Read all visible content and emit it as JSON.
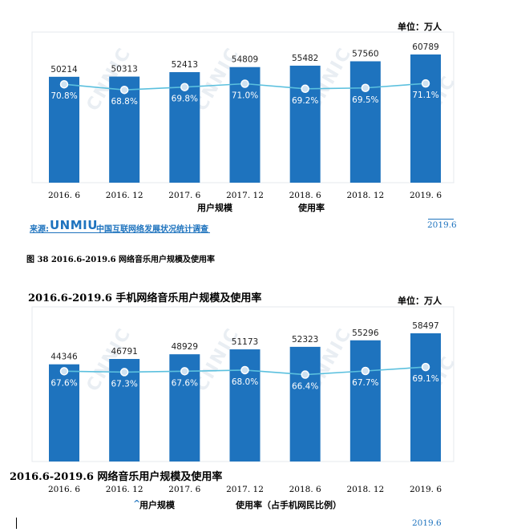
{
  "chart_data": [
    {
      "type": "bar",
      "unit_label": "单位：万人",
      "categories": [
        "2016. 6",
        "2016. 12",
        "2017. 6",
        "2017. 12",
        "2018. 6",
        "2018. 12",
        "2019. 6"
      ],
      "series": [
        {
          "name": "用户规模",
          "values": [
            50214,
            50313,
            52413,
            54809,
            55482,
            57560,
            60789
          ],
          "color": "#1e73be"
        },
        {
          "name": "使用率",
          "values": [
            70.8,
            68.8,
            69.8,
            71.0,
            69.2,
            69.5,
            71.1
          ],
          "labels": [
            "70.8%",
            "68.8%",
            "69.8%",
            "71.0%",
            "69.2%",
            "69.5%",
            "71.1%"
          ],
          "color": "#5bc0de"
        }
      ],
      "ylim": [
        0,
        60789
      ]
    },
    {
      "type": "bar",
      "title": "2016.6-2019.6 手机网络音乐用户规模及使用率",
      "unit_label": "单位：万人",
      "categories": [
        "2016. 6",
        "2016. 12",
        "2017. 6",
        "2017. 12",
        "2018. 6",
        "2018. 12",
        "2019. 6"
      ],
      "series": [
        {
          "name": "用户规模",
          "values": [
            44346,
            46791,
            48929,
            51173,
            52323,
            55296,
            58497
          ],
          "color": "#1e73be"
        },
        {
          "name": "使用率（占手机网民比例）",
          "values": [
            67.6,
            67.3,
            67.6,
            68.0,
            66.4,
            67.7,
            69.1
          ],
          "labels": [
            "67.6%",
            "67.3%",
            "67.6%",
            "68.0%",
            "66.4%",
            "67.7%",
            "69.1%"
          ],
          "color": "#5bc0de"
        }
      ],
      "ylim": [
        0,
        58497
      ]
    }
  ],
  "chart1_meta": {
    "source_prefix": "来源:",
    "source_brand": "UNMIU",
    "source_text": "中国互联网络发展状况统计调查",
    "date": "2019.6",
    "caption": "图 38 2016.6-2019.6 网络音乐用户规模及使用率"
  },
  "chart2_meta": {
    "subtitle_below": "2016.6-2019.6 网络音乐用户规模及使用率",
    "legend_prefix": "^",
    "date": "2019.6"
  },
  "watermark": "CNNIC",
  "colors": {
    "bar": "#1e73be",
    "line": "#5bc0de"
  }
}
